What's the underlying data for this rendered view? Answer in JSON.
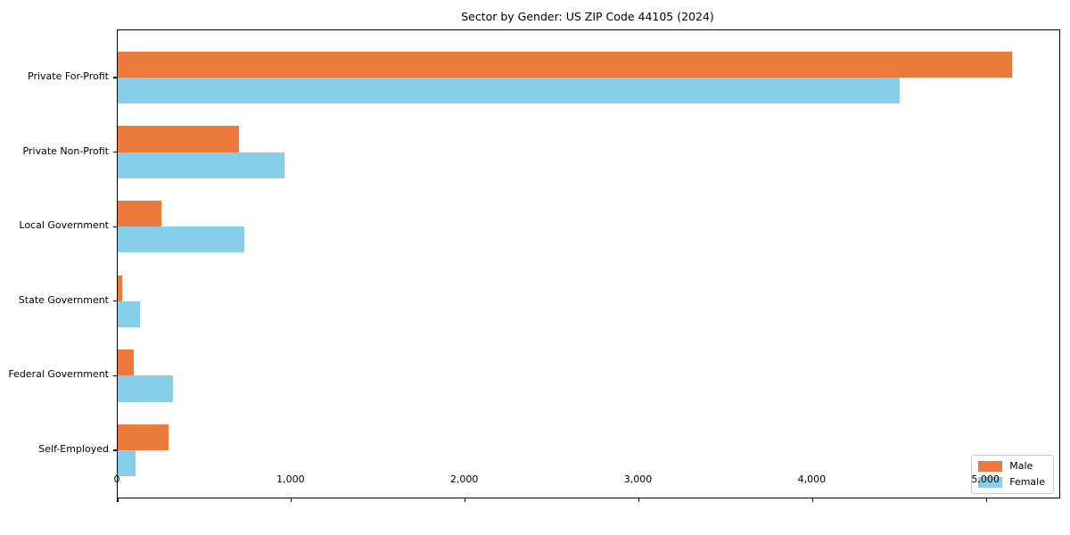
{
  "chart_data": {
    "type": "bar",
    "orientation": "horizontal",
    "title": "Sector by Gender: US ZIP Code 44105 (2024)",
    "categories": [
      "Private For-Profit",
      "Private Non-Profit",
      "Local Government",
      "State Government",
      "Federal Government",
      "Self-Employed"
    ],
    "series": [
      {
        "name": "Male",
        "color": "#ec7a3d",
        "values": [
          5150,
          700,
          250,
          25,
          90,
          290
        ]
      },
      {
        "name": "Female",
        "color": "#87ceeb",
        "values": [
          4500,
          960,
          730,
          130,
          320,
          105
        ]
      }
    ],
    "xlabel": "",
    "ylabel": "",
    "xlim": [
      0,
      5420
    ],
    "x_ticks": [
      0,
      1000,
      2000,
      3000,
      4000,
      5000
    ],
    "x_tick_labels": [
      "0",
      "1,000",
      "2,000",
      "3,000",
      "4,000",
      "5,000"
    ],
    "grid": false,
    "legend": {
      "position": "lower right",
      "entries": [
        "Male",
        "Female"
      ]
    },
    "axis_color": "#000000",
    "background_color": "#ffffff"
  }
}
